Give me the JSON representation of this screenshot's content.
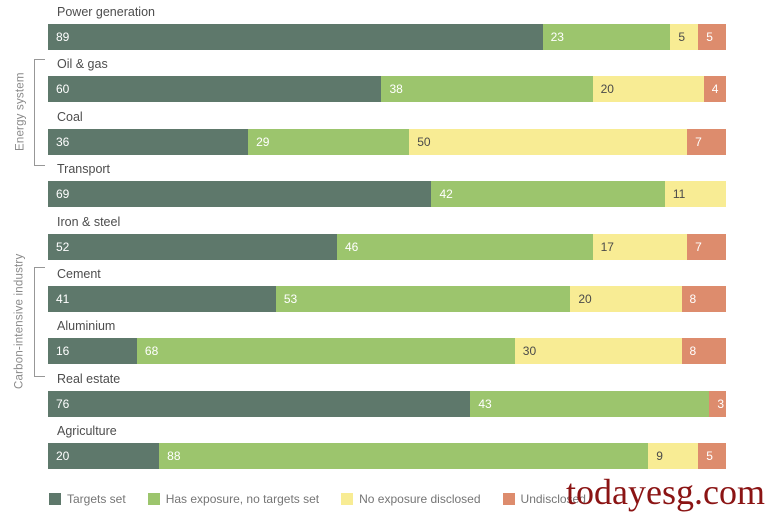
{
  "watermark": "todayesg.com",
  "colors": {
    "targets_set": "#5e786b",
    "has_exposure": "#9cc56d",
    "no_exposure": "#f8ec94",
    "undisclosed": "#dd8c6d",
    "row_label_text": "#4d4d4d",
    "legend_text": "#757575",
    "bracket_gray": "#979797",
    "watermark_red": "#8b1414"
  },
  "groups": [
    {
      "label": "Energy system",
      "covers": [
        "Oil & gas",
        "Coal"
      ]
    },
    {
      "label": "Carbon-intensive industry",
      "covers": [
        "Cement",
        "Aluminium"
      ]
    }
  ],
  "legend": [
    {
      "key": "targets_set",
      "label": "Targets set"
    },
    {
      "key": "has_exposure",
      "label": "Has exposure, no targets set"
    },
    {
      "key": "no_exposure",
      "label": "No exposure disclosed"
    },
    {
      "key": "undisclosed",
      "label": "Undisclosed"
    }
  ],
  "chart_data": {
    "type": "bar",
    "orientation": "horizontal",
    "stacked": true,
    "row_total": 122,
    "grid": false,
    "legend_position": "bottom",
    "categories": [
      "Power generation",
      "Oil & gas",
      "Coal",
      "Transport",
      "Iron & steel",
      "Cement",
      "Aluminium",
      "Real estate",
      "Agriculture"
    ],
    "series": [
      {
        "key": "targets_set",
        "name": "Targets set",
        "color": "#5e786b",
        "value_text_color": "#ffffff",
        "values": [
          89,
          60,
          36,
          69,
          52,
          41,
          16,
          76,
          20
        ]
      },
      {
        "key": "has_exposure",
        "name": "Has exposure, no targets set",
        "color": "#9cc56d",
        "value_text_color": "#ffffff",
        "values": [
          23,
          38,
          29,
          42,
          46,
          53,
          68,
          43,
          88
        ]
      },
      {
        "key": "no_exposure",
        "name": "No exposure disclosed",
        "color": "#f8ec94",
        "value_text_color": "#4a4a4a",
        "values": [
          5,
          20,
          50,
          11,
          17,
          20,
          30,
          0,
          9
        ]
      },
      {
        "key": "undisclosed",
        "name": "Undisclosed",
        "color": "#dd8c6d",
        "value_text_color": "#ffffff",
        "values": [
          5,
          4,
          7,
          0,
          7,
          8,
          8,
          3,
          5
        ]
      }
    ]
  }
}
